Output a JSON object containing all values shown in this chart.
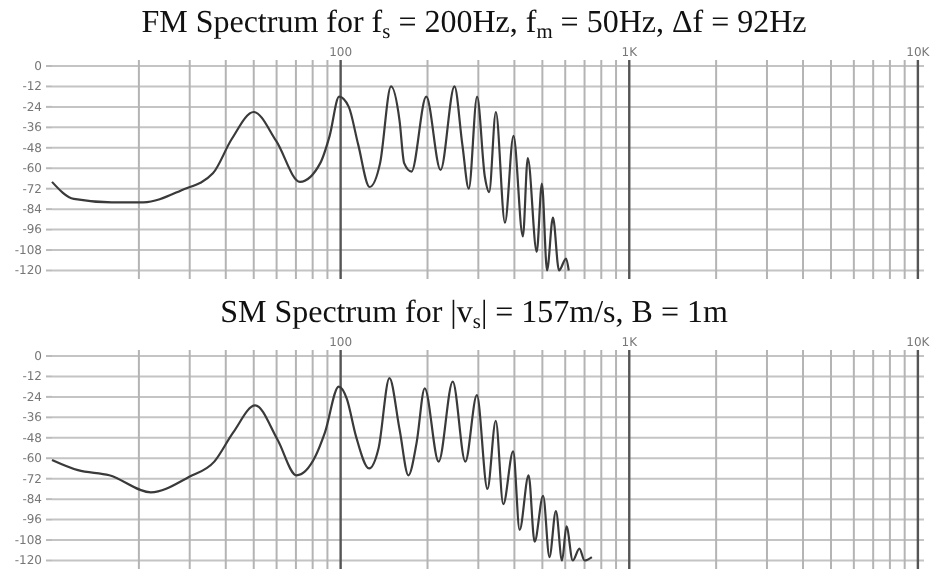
{
  "chart_data": [
    {
      "type": "line",
      "title": "FM Spectrum for f$_{s}$ = 200Hz, f$_{m}$ = 50Hz, Δf = 92Hz",
      "x": [
        10,
        11.9,
        16.1,
        20.7,
        28,
        36.1,
        41.9,
        50,
        59.8,
        72.3,
        85,
        91.6,
        98.8,
        106.7,
        115,
        126,
        137,
        149.5,
        160,
        166,
        176,
        198,
        222,
        248,
        264,
        278,
        297,
        316,
        327,
        345,
        371,
        397,
        428,
        445,
        478,
        498,
        519,
        544,
        571,
        604,
        617
      ],
      "series": [
        {
          "color": "#3a3a3a",
          "values": [
            -68,
            -78,
            -80,
            -80,
            -73,
            -63,
            -43,
            -27,
            -44,
            -68,
            -57,
            -41,
            -18,
            -24,
            -46,
            -71,
            -57,
            -12,
            -32,
            -57,
            -62,
            -18,
            -61,
            -12,
            -46,
            -72,
            -18,
            -65,
            -74,
            -27,
            -92,
            -41,
            -100,
            -54,
            -109,
            -69,
            -120,
            -89,
            -120,
            -113,
            -120
          ]
        }
      ],
      "xlim": [
        10,
        10500
      ],
      "ylim": [
        -125,
        0
      ],
      "log": "x",
      "grid": true,
      "xticks": [
        {
          "value": 20,
          "label": null
        },
        {
          "value": 30,
          "label": null
        },
        {
          "value": 40,
          "label": null
        },
        {
          "value": 50,
          "label": null
        },
        {
          "value": 60,
          "label": null
        },
        {
          "value": 70,
          "label": null
        },
        {
          "value": 80,
          "label": null
        },
        {
          "value": 90,
          "label": null
        },
        {
          "value": 100,
          "label": "100"
        },
        {
          "value": 200,
          "label": null
        },
        {
          "value": 300,
          "label": null
        },
        {
          "value": 400,
          "label": null
        },
        {
          "value": 500,
          "label": null
        },
        {
          "value": 600,
          "label": null
        },
        {
          "value": 700,
          "label": null
        },
        {
          "value": 800,
          "label": null
        },
        {
          "value": 900,
          "label": null
        },
        {
          "value": 1000,
          "label": "1K"
        },
        {
          "value": 2000,
          "label": null
        },
        {
          "value": 3000,
          "label": null
        },
        {
          "value": 4000,
          "label": null
        },
        {
          "value": 5000,
          "label": null
        },
        {
          "value": 6000,
          "label": null
        },
        {
          "value": 7000,
          "label": null
        },
        {
          "value": 8000,
          "label": null
        },
        {
          "value": 9000,
          "label": null
        },
        {
          "value": 10000,
          "label": "10K"
        }
      ],
      "yticks": [
        0,
        -12,
        -24,
        -36,
        -48,
        -60,
        -72,
        -84,
        -96,
        -108,
        -120
      ]
    },
    {
      "type": "line",
      "title": "SM Spectrum for |v$_{s}$| = 157m/s, B = 1m",
      "x": [
        10,
        12.3,
        15.8,
        22,
        29.8,
        36.5,
        42.4,
        50.6,
        60.4,
        70.3,
        81.7,
        88.2,
        98.5,
        105,
        113,
        125.5,
        135.4,
        147.6,
        160,
        171.7,
        183.3,
        195.6,
        218.6,
        244.6,
        270.4,
        296.5,
        322.6,
        344.8,
        366,
        396,
        417,
        448,
        470,
        503,
        529,
        557,
        585,
        606,
        637,
        672,
        700,
        742
      ],
      "series": [
        {
          "color": "#3a3a3a",
          "values": [
            -61,
            -67,
            -70,
            -80,
            -71,
            -62,
            -45,
            -29,
            -49,
            -70,
            -59,
            -45,
            -18,
            -25,
            -47,
            -66,
            -54,
            -13,
            -43,
            -70,
            -51,
            -19,
            -62,
            -15,
            -62,
            -23,
            -78,
            -38,
            -87,
            -56,
            -102,
            -70,
            -109,
            -82,
            -118,
            -91,
            -120,
            -100,
            -120,
            -113,
            -120,
            -118
          ]
        }
      ],
      "xlim": [
        10,
        10500
      ],
      "ylim": [
        -125,
        0
      ],
      "log": "x",
      "grid": true,
      "xticks": [
        {
          "value": 20,
          "label": null
        },
        {
          "value": 30,
          "label": null
        },
        {
          "value": 40,
          "label": null
        },
        {
          "value": 50,
          "label": null
        },
        {
          "value": 60,
          "label": null
        },
        {
          "value": 70,
          "label": null
        },
        {
          "value": 80,
          "label": null
        },
        {
          "value": 90,
          "label": null
        },
        {
          "value": 100,
          "label": "100"
        },
        {
          "value": 200,
          "label": null
        },
        {
          "value": 300,
          "label": null
        },
        {
          "value": 400,
          "label": null
        },
        {
          "value": 500,
          "label": null
        },
        {
          "value": 600,
          "label": null
        },
        {
          "value": 700,
          "label": null
        },
        {
          "value": 800,
          "label": null
        },
        {
          "value": 900,
          "label": null
        },
        {
          "value": 1000,
          "label": "1K"
        },
        {
          "value": 2000,
          "label": null
        },
        {
          "value": 3000,
          "label": null
        },
        {
          "value": 4000,
          "label": null
        },
        {
          "value": 5000,
          "label": null
        },
        {
          "value": 6000,
          "label": null
        },
        {
          "value": 7000,
          "label": null
        },
        {
          "value": 8000,
          "label": null
        },
        {
          "value": 9000,
          "label": null
        },
        {
          "value": 10000,
          "label": "10K"
        }
      ],
      "yticks": [
        0,
        -12,
        -24,
        -36,
        -48,
        -60,
        -72,
        -84,
        -96,
        -108,
        -120
      ]
    }
  ]
}
